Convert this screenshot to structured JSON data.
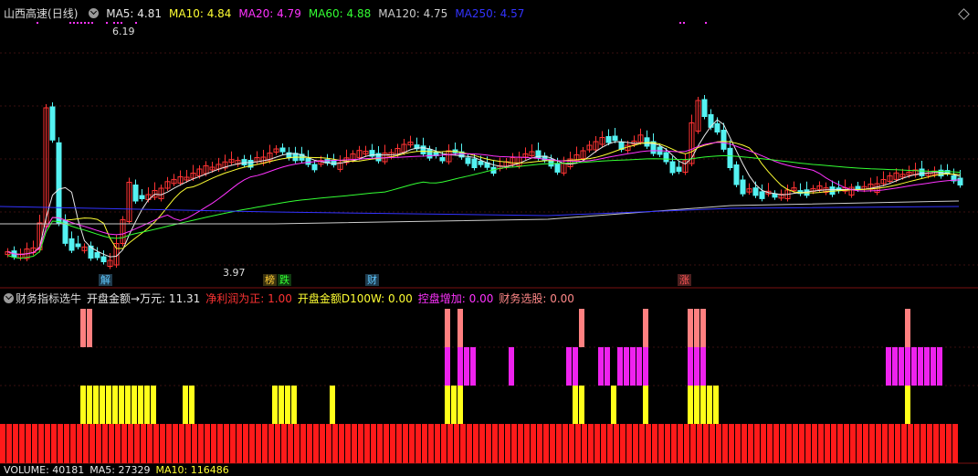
{
  "header": {
    "stock_name": "山西高速",
    "period": "(日线)",
    "ma": [
      {
        "label": "MA5:",
        "value": "4.81",
        "color": "#e8e8e8"
      },
      {
        "label": "MA10:",
        "value": "4.84",
        "color": "#ffff33"
      },
      {
        "label": "MA20:",
        "value": "4.79",
        "color": "#ff33ff"
      },
      {
        "label": "MA60:",
        "value": "4.88",
        "color": "#33ff33"
      },
      {
        "label": "MA120:",
        "value": "4.75",
        "color": "#cccccc"
      },
      {
        "label": "MA250:",
        "value": "4.57",
        "color": "#3333ff"
      }
    ]
  },
  "price_annotations": {
    "high": "6.19",
    "low": "3.97"
  },
  "event_tags": [
    {
      "text": "解",
      "color": "#5ec8ff"
    },
    {
      "text": "榜",
      "color": "#ffcc33"
    },
    {
      "text": "跌",
      "color": "#33ff33"
    },
    {
      "text": "财",
      "color": "#5ec8ff"
    },
    {
      "text": "涨",
      "color": "#ff5555"
    }
  ],
  "indicator": {
    "name": "财务指标选牛",
    "items": [
      {
        "label": "开盘金额→万元:",
        "value": "11.31",
        "color": "#e8e8e8"
      },
      {
        "label": "净利润为正:",
        "value": "1.00",
        "color": "#ff3333"
      },
      {
        "label": "开盘金额D100W:",
        "value": "0.00",
        "color": "#ffff33"
      },
      {
        "label": "控盘增加:",
        "value": "0.00",
        "color": "#ff33ff"
      },
      {
        "label": "财务选股:",
        "value": "0.00",
        "color": "#ff8888"
      }
    ]
  },
  "volume": {
    "items": [
      {
        "label": "VOLUME:",
        "value": "40181",
        "color": "#e8e8e8"
      },
      {
        "label": "MA5:",
        "value": "27329",
        "color": "#e8e8e8"
      },
      {
        "label": "MA10:",
        "value": "116486",
        "color": "#ffff33"
      }
    ]
  },
  "colors": {
    "up": "#ff3333",
    "down": "#54f2f2",
    "background": "#000000"
  }
}
